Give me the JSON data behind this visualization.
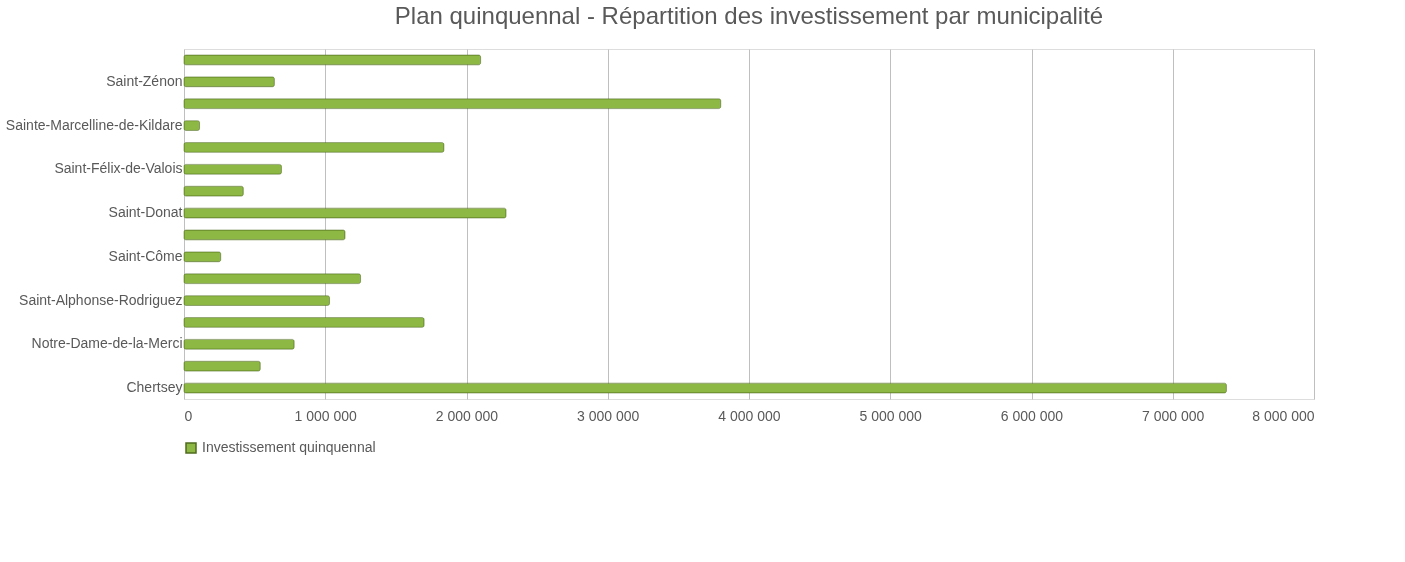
{
  "chart_data": {
    "type": "bar",
    "orientation": "horizontal",
    "title": "Plan quinquennal - Répartition des investissement par municipalité",
    "categories": [
      null,
      "Saint-Zénon",
      null,
      "Sainte-Marcelline-de-Kildare",
      null,
      "Saint-Félix-de-Valois",
      null,
      "Saint-Donat",
      null,
      "Saint-Côme",
      null,
      "Saint-Alphonse-Rodriguez",
      null,
      "Notre-Dame-de-la-Merci",
      null,
      "Chertsey"
    ],
    "series": [
      {
        "name": "Investissement quinquennal",
        "color": "#8db843",
        "values": [
          2100000,
          640000,
          3800000,
          110000,
          1840000,
          690000,
          420000,
          2280000,
          1140000,
          260000,
          1250000,
          1030000,
          1700000,
          780000,
          540000,
          7380000
        ]
      }
    ],
    "xlim": [
      0,
      8000000
    ],
    "xticks": [
      {
        "value": 0,
        "label": "0"
      },
      {
        "value": 1000000,
        "label": "1 000 000"
      },
      {
        "value": 2000000,
        "label": "2 000 000"
      },
      {
        "value": 3000000,
        "label": "3 000 000"
      },
      {
        "value": 4000000,
        "label": "4 000 000"
      },
      {
        "value": 5000000,
        "label": "5 000 000"
      },
      {
        "value": 6000000,
        "label": "6 000 000"
      },
      {
        "value": 7000000,
        "label": "7 000 000"
      },
      {
        "value": 8000000,
        "label": "8 000 000"
      }
    ],
    "grid": "x",
    "legend": "bottom"
  }
}
